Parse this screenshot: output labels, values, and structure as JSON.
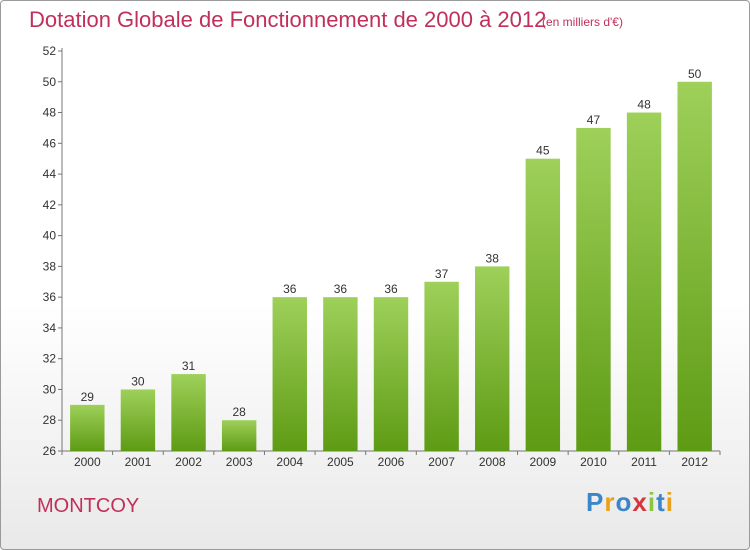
{
  "chart_data": {
    "type": "bar",
    "title": "Dotation Globale de Fonctionnement de 2000 à 2012",
    "subtitle": "(en milliers d'€)",
    "categories": [
      "2000",
      "2001",
      "2002",
      "2003",
      "2004",
      "2005",
      "2006",
      "2007",
      "2008",
      "2009",
      "2010",
      "2011",
      "2012"
    ],
    "values": [
      29,
      30,
      31,
      28,
      36,
      36,
      36,
      37,
      38,
      45,
      47,
      48,
      50
    ],
    "ylim": [
      26,
      52
    ],
    "yticks": [
      26,
      28,
      30,
      32,
      34,
      36,
      38,
      40,
      42,
      44,
      46,
      48,
      50,
      52
    ],
    "grid": false,
    "bar_color_top": "#9ed05a",
    "bar_color_bottom": "#5e9b14"
  },
  "footer": {
    "commune": "MONTCOY",
    "logo_letters": [
      "P",
      "r",
      "o",
      "x",
      "i",
      "t",
      "i"
    ],
    "logo_colors": [
      "#3a86c8",
      "#e9a21b",
      "#3a86c8",
      "#d8343c",
      "#8cc63f",
      "#3a86c8",
      "#e9a21b"
    ]
  }
}
